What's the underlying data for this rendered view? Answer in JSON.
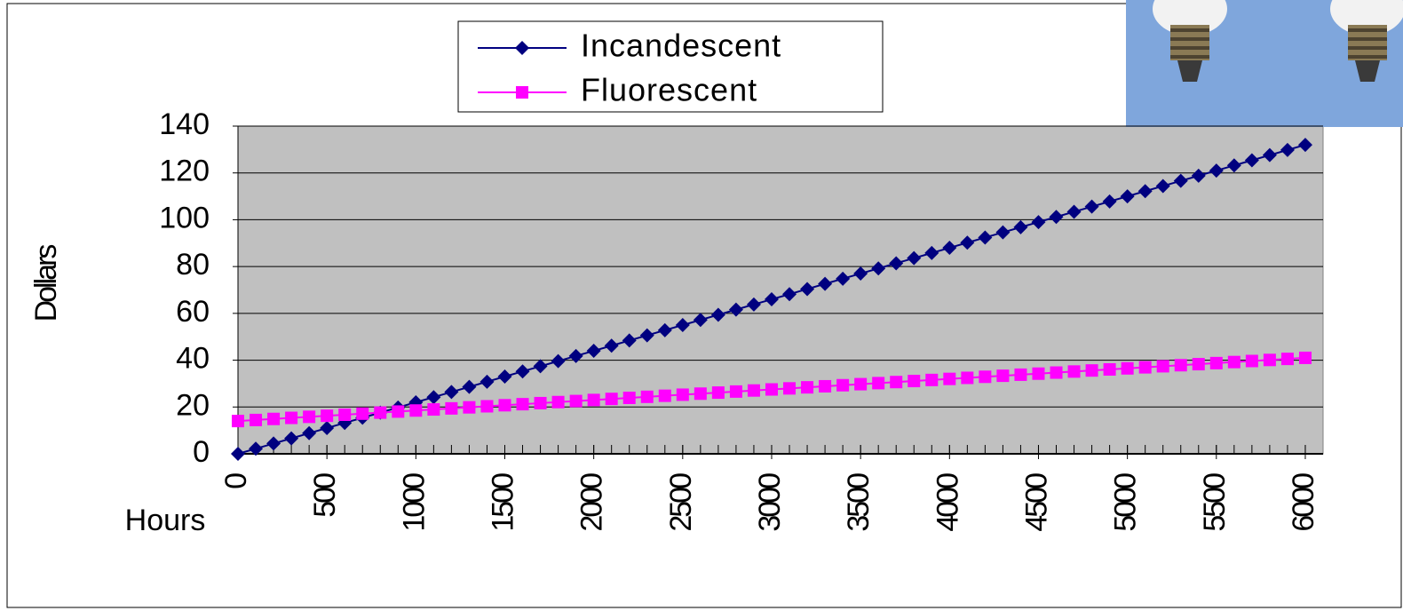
{
  "chart_data": {
    "type": "line",
    "y_label": "Dollars",
    "x_label": "Hours",
    "x": [
      0,
      100,
      200,
      300,
      400,
      500,
      600,
      700,
      800,
      900,
      1000,
      1100,
      1200,
      1300,
      1400,
      1500,
      1600,
      1700,
      1800,
      1900,
      2000,
      2100,
      2200,
      2300,
      2400,
      2500,
      2600,
      2700,
      2800,
      2900,
      3000,
      3100,
      3200,
      3300,
      3400,
      3500,
      3600,
      3700,
      3800,
      3900,
      4000,
      4100,
      4200,
      4300,
      4400,
      4500,
      4600,
      4700,
      4800,
      4900,
      5000,
      5100,
      5200,
      5300,
      5400,
      5500,
      5600,
      5700,
      5800,
      5900,
      6000
    ],
    "series": [
      {
        "name": "Incandescent",
        "color": "#000080",
        "marker": "diamond",
        "values": [
          0,
          2.2,
          4.4,
          6.6,
          8.8,
          11,
          13.2,
          15.4,
          17.6,
          19.8,
          22,
          24.2,
          26.4,
          28.6,
          30.8,
          33,
          35.2,
          37.4,
          39.6,
          41.8,
          44,
          46.2,
          48.4,
          50.6,
          52.8,
          55,
          57.2,
          59.4,
          61.6,
          63.8,
          66,
          68.2,
          70.4,
          72.6,
          74.8,
          77,
          79.2,
          81.4,
          83.6,
          85.8,
          88,
          90.2,
          92.4,
          94.6,
          96.8,
          99,
          101.2,
          103.4,
          105.6,
          107.8,
          110,
          112.2,
          114.4,
          116.6,
          118.8,
          121,
          123.2,
          125.4,
          127.6,
          129.8,
          132
        ]
      },
      {
        "name": "Fluorescent",
        "color": "#ff00ff",
        "marker": "square",
        "values": [
          14,
          14.45,
          14.9,
          15.35,
          15.8,
          16.25,
          16.7,
          17.15,
          17.6,
          18.05,
          18.5,
          18.95,
          19.4,
          19.85,
          20.3,
          20.75,
          21.2,
          21.65,
          22.1,
          22.55,
          23,
          23.45,
          23.9,
          24.35,
          24.8,
          25.25,
          25.7,
          26.15,
          26.6,
          27.05,
          27.5,
          27.95,
          28.4,
          28.85,
          29.3,
          29.75,
          30.2,
          30.65,
          31.1,
          31.55,
          32,
          32.45,
          32.9,
          33.35,
          33.8,
          34.25,
          34.7,
          35.15,
          35.6,
          36.05,
          36.5,
          36.95,
          37.4,
          37.85,
          38.3,
          38.75,
          39.2,
          39.65,
          40.1,
          40.55,
          41
        ]
      }
    ],
    "xlim": [
      0,
      6100
    ],
    "xticks": [
      0,
      500,
      1000,
      1500,
      2000,
      2500,
      3000,
      3500,
      4000,
      4500,
      5000,
      5500,
      6000
    ],
    "ylim": [
      0,
      140
    ],
    "yticks": [
      0,
      20,
      40,
      60,
      80,
      100,
      120,
      140
    ],
    "grid": true,
    "plot_background": "#c0c0c0",
    "legend": "top"
  }
}
